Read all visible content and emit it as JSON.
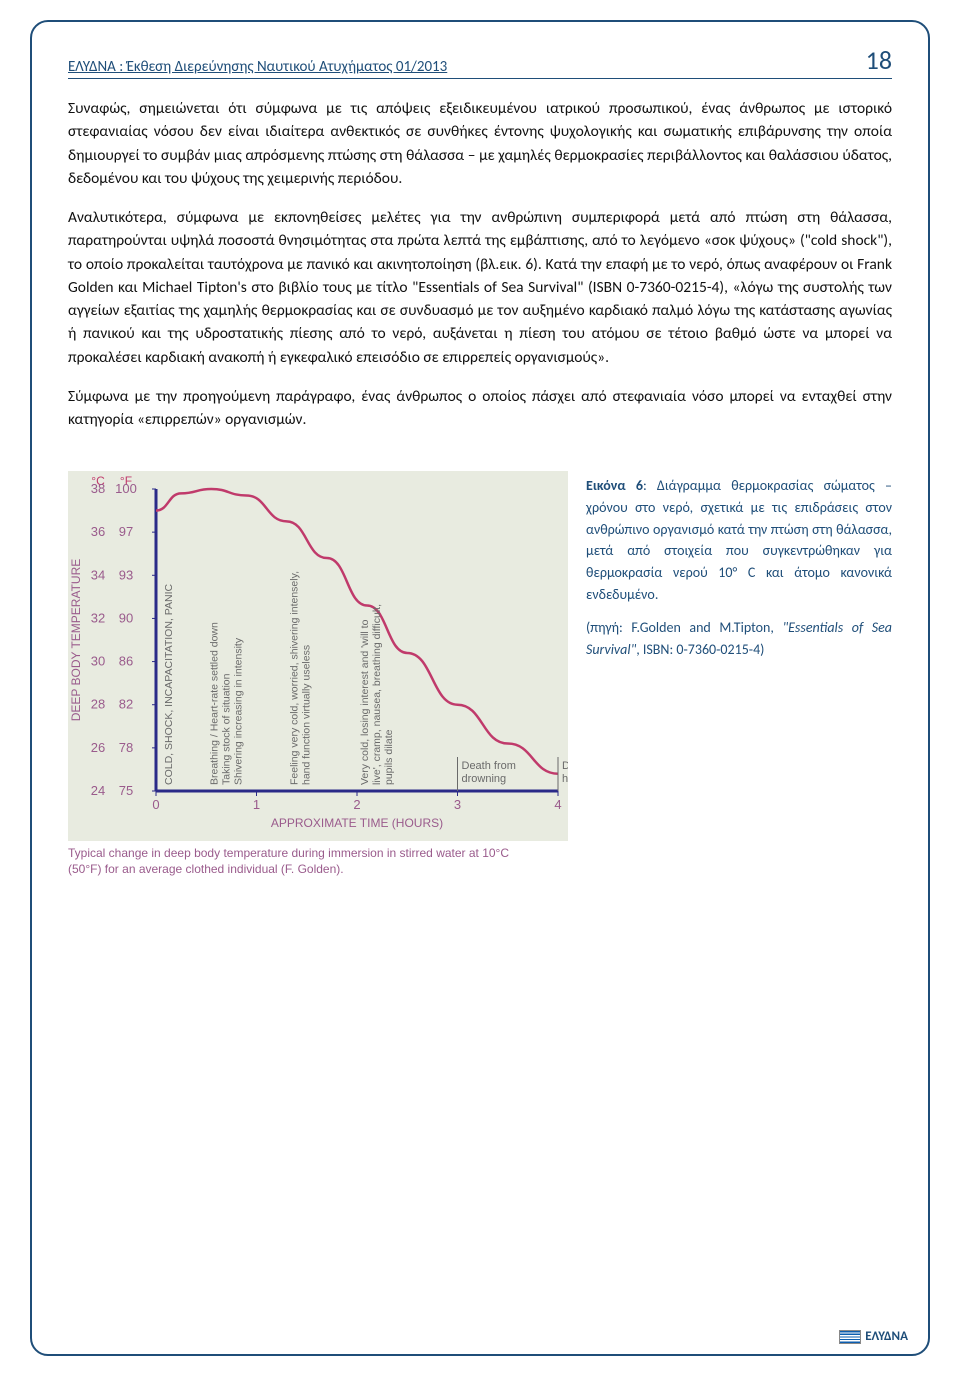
{
  "header": {
    "title": "ΕΛΥΔΝΑ :  Έκθεση Διερεύνησης Ναυτικού Ατυχήματος 01/2013",
    "page_number": "18"
  },
  "paragraphs": {
    "p1": "Συναφώς, σημειώνεται ότι σύμφωνα με τις απόψεις εξειδικευμένου ιατρικού προσωπικού, ένας άνθρωπος με ιστορικό στεφανιαίας νόσου δεν είναι ιδιαίτερα ανθεκτικός σε συνθήκες έντονης ψυχολογικής και σωματικής επιβάρυνσης την οποία δημιουργεί το συμβάν μιας απρόσμενης πτώσης στη θάλασσα – με χαμηλές θερμοκρασίες περιβάλλοντος και θαλάσσιου ύδατος, δεδομένου και του ψύχους της χειμερινής περιόδου.",
    "p2": "Αναλυτικότερα, σύμφωνα με εκπονηθείσες μελέτες για την ανθρώπινη συμπεριφορά μετά από πτώση στη θάλασσα, παρατηρούνται υψηλά ποσοστά θνησιμότητας στα πρώτα λεπτά της εμβάπτισης, από το λεγόμενο «σοκ ψύχους» (\"cold shock\"), το οποίο προκαλείται ταυτόχρονα με πανικό και ακινητοποίηση (βλ.εικ. 6). Κατά την επαφή με το νερό, όπως αναφέρουν οι Frank Golden και Michael Tipton's στο βιβλίο τους με τίτλο \"Essentials of Sea Survival\" (ISBN 0-7360-0215-4), «λόγω της συστολής των αγγείων εξαιτίας της χαμηλής θερμοκρασίας και σε συνδυασμό με τον αυξημένο καρδιακό παλμό λόγω της κατάστασης αγωνίας ή πανικού και της υδροστατικής πίεσης από το νερό, αυξάνεται η πίεση του ατόμου σε τέτοιο βαθμό ώστε να μπορεί να προκαλέσει καρδιακή ανακοπή ή εγκεφαλικό επεισόδιο σε επιρρεπείς οργανισμούς».",
    "p3": "Σύμφωνα με την προηγούμενη παράγραφο, ένας άνθρωπος ο οποίος πάσχει από στεφανιαία νόσο μπορεί να ενταχθεί στην κατηγορία «επιρρεπών» οργανισμών."
  },
  "figure_caption": {
    "label": "Εικόνα 6",
    "rest": ":  Διάγραμμα θερμοκρασίας σώματος – χρόνου στο νερό, σχετικά με τις επιδράσεις στον ανθρώπινο οργανισμό κατά την πτώση στη θάλασσα, μετά από στοιχεία που συγκεντρώθηκαν για θερμοκρασία νερού 10° C και άτομο κανονικά ενδεδυμένο.",
    "source": "(πηγή: F.Golden and M.Tipton, ",
    "source_em": "\"Essentials of Sea Survival\"",
    "source_tail": ", ISBN: 0-7360-0215-4)"
  },
  "chart": {
    "type": "line",
    "background_color": "#e8ebe0",
    "plot_border_color": "#2a2a88",
    "curve_color": "#c03a6b",
    "axis_text_color": "#9a5b8c",
    "in_plot_text_color": "#6a6a6a",
    "y_label": "DEEP BODY TEMPERATURE",
    "x_label": "APPROXIMATE TIME (HOURS)",
    "y_ticks_c": [
      "38",
      "36",
      "34",
      "32",
      "30",
      "28",
      "26",
      "24"
    ],
    "y_ticks_f": [
      "100",
      "97",
      "93",
      "90",
      "86",
      "82",
      "78",
      "75"
    ],
    "x_ticks": [
      "0",
      "1",
      "2",
      "3",
      "4"
    ],
    "xlim": [
      0,
      4
    ],
    "ylim_c": [
      24,
      38
    ],
    "curve_points": [
      {
        "x": 0.0,
        "c": 37.0
      },
      {
        "x": 0.25,
        "c": 37.8
      },
      {
        "x": 0.55,
        "c": 38.0
      },
      {
        "x": 0.9,
        "c": 37.7
      },
      {
        "x": 1.3,
        "c": 36.5
      },
      {
        "x": 1.7,
        "c": 34.8
      },
      {
        "x": 2.1,
        "c": 32.6
      },
      {
        "x": 2.5,
        "c": 30.4
      },
      {
        "x": 3.0,
        "c": 28.0
      },
      {
        "x": 3.5,
        "c": 26.2
      },
      {
        "x": 4.0,
        "c": 24.8
      }
    ],
    "region_labels": [
      {
        "x": 0.1,
        "text": "COLD, SHOCK, INCAPACITATION, PANIC"
      },
      {
        "x": 0.55,
        "text": "Breathing / Heart-rate settled down\nTaking stock of situation\nShivering increasing in intensity"
      },
      {
        "x": 1.35,
        "text": "Feeling very cold, worried, shivering intensely,\nhand function virtually useless"
      },
      {
        "x": 2.05,
        "text": "Very cold, losing interest and 'will to\nlive', cramp, nausea, breathing difficult,\npupils dilate"
      }
    ],
    "death_labels": [
      {
        "x": 3.0,
        "text": "Death from\ndrowning"
      },
      {
        "x": 4.0,
        "text": "Death from\nhypothermia"
      }
    ],
    "bottom_caption": "Typical change in deep body temperature during immersion in stirred water at 10°C (50°F) for an average clothed individual (F. Golden)."
  },
  "footer": {
    "brand": "ΕΛΥΔΝΑ"
  }
}
